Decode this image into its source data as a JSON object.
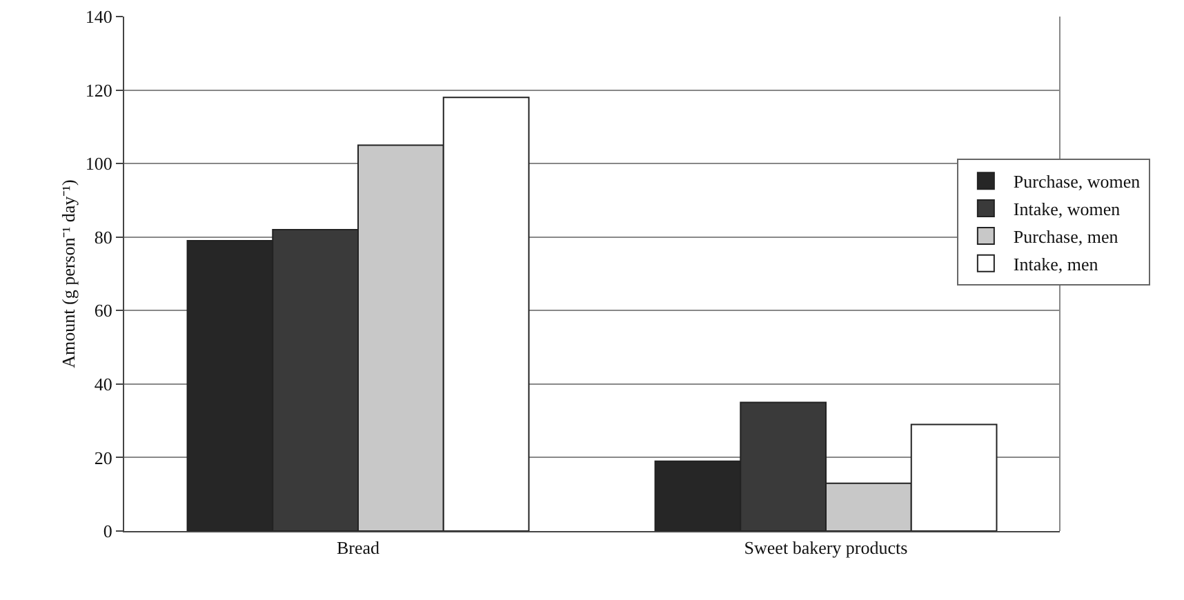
{
  "chart_data": {
    "type": "bar",
    "ylabel": "Amount (g person⁻¹ day⁻¹)",
    "categories": [
      "Bread",
      "Sweet bakery products"
    ],
    "series": [
      {
        "name": "Purchase, women",
        "color": "#262626",
        "values": [
          79,
          19
        ]
      },
      {
        "name": "Intake, women",
        "color": "#3a3a3a",
        "values": [
          82,
          35
        ]
      },
      {
        "name": "Purchase, men",
        "color": "#c8c8c8",
        "values": [
          105,
          13
        ]
      },
      {
        "name": "Intake, men",
        "color": "#ffffff",
        "values": [
          118,
          29
        ]
      }
    ],
    "ylim": [
      0,
      140
    ],
    "yticks": [
      0,
      20,
      40,
      60,
      80,
      100,
      120,
      140
    ],
    "grid": "y",
    "legend": "right"
  }
}
